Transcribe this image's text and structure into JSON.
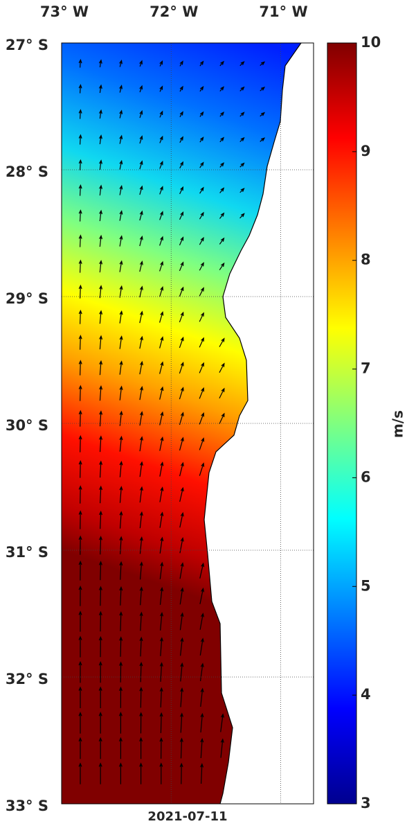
{
  "map": {
    "xlim": [
      -73,
      -70.7
    ],
    "ylim": [
      -27,
      -33
    ],
    "xticks": [
      {
        "value": -73,
        "label": "73° W"
      },
      {
        "value": -72,
        "label": "72° W"
      },
      {
        "value": -71,
        "label": "71° W"
      }
    ],
    "yticks": [
      {
        "value": -27,
        "label": "27° S"
      },
      {
        "value": -28,
        "label": "28° S"
      },
      {
        "value": -29,
        "label": "29° S"
      },
      {
        "value": -30,
        "label": "30° S"
      },
      {
        "value": -31,
        "label": "31° S"
      },
      {
        "value": -32,
        "label": "32° S"
      },
      {
        "value": -33,
        "label": "33° S"
      }
    ],
    "grid": true,
    "date": "2021-07-11"
  },
  "colorbar": {
    "label": "m/s",
    "lim": [
      3,
      10
    ],
    "ticks": [
      3,
      4,
      5,
      6,
      7,
      8,
      9,
      10
    ]
  }
}
